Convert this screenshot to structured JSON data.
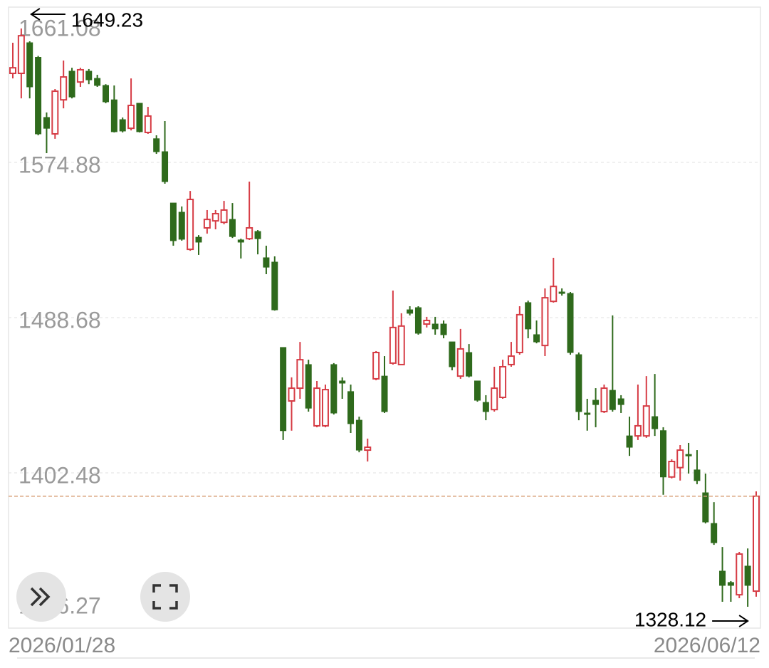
{
  "chart_data": {
    "type": "candlestick",
    "ylim": [
      1316.27,
      1661.08
    ],
    "yticks": [
      1661.08,
      1574.88,
      1488.68,
      1402.48,
      1316.27
    ],
    "up_color": "#d63c45",
    "down_color": "#2f6a1c",
    "categories": [
      "2026/01/28",
      null,
      null,
      null,
      null,
      null,
      null,
      null,
      null,
      null,
      null,
      null,
      null,
      null,
      null,
      null,
      null,
      null,
      null,
      null,
      null,
      null,
      null,
      null,
      null,
      null,
      null,
      null,
      null,
      null,
      null,
      null,
      null,
      null,
      null,
      null,
      null,
      null,
      null,
      null,
      null,
      null,
      null,
      null,
      null,
      null,
      null,
      null,
      null,
      null,
      null,
      null,
      null,
      null,
      null,
      null,
      null,
      null,
      null,
      null,
      null,
      null,
      null,
      null,
      null,
      null,
      null,
      null,
      null,
      null,
      null,
      null,
      null,
      null,
      null,
      null,
      null,
      null,
      null,
      null,
      null,
      null,
      null,
      null,
      null,
      null,
      null,
      null,
      "2026/06/12"
    ],
    "open": [
      1624.3,
      1624.3,
      1641.3,
      1633.2,
      1599.8,
      1590.7,
      1609.6,
      1625.5,
      1619.5,
      1625.5,
      1621.5,
      1617.6,
      1609.6,
      1598.6,
      1593.8,
      1607.7,
      1591.5,
      1588.0,
      1580.8,
      1552.3,
      1547.2,
      1526.6,
      1533.3,
      1538.5,
      1542.4,
      1541.6,
      1543.2,
      1531.8,
      1532.5,
      1536.5,
      1521.9,
      1519.5,
      1472.1,
      1442.4,
      1449.5,
      1462.6,
      1428.6,
      1428.6,
      1462.6,
      1453.5,
      1447.6,
      1431.7,
      1415.1,
      1454.7,
      1456.2,
      1463.4,
      1462.6,
      1493.0,
      1494.2,
      1485.1,
      1485.1,
      1485.1,
      1475.2,
      1456.2,
      1469.3,
      1453.5,
      1441.6,
      1437.6,
      1444.4,
      1462.6,
      1469.3,
      1497.0,
      1479.2,
      1473.2,
      1497.7,
      1502.9,
      1502.1,
      1468.1,
      1435.7,
      1442.8,
      1436.5,
      1448.3,
      1443.6,
      1423.0,
      1423.0,
      1423.0,
      1433.7,
      1425.9,
      1400.2,
      1405.4,
      1412.7,
      1404.1,
      1391.4,
      1374.4,
      1347.9,
      1341.6,
      1334.8,
      1350.7,
      1336.8
    ],
    "high": [
      1641.3,
      1649.23,
      1642.1,
      1634.0,
      1602.6,
      1615.6,
      1631.4,
      1627.4,
      1627.4,
      1626.7,
      1623.5,
      1618.3,
      1617.6,
      1599.8,
      1621.5,
      1607.7,
      1605.7,
      1589.9,
      1597.8,
      1552.3,
      1550.4,
      1559.0,
      1534.5,
      1548.4,
      1548.4,
      1553.5,
      1552.3,
      1532.5,
      1564.2,
      1537.3,
      1528.6,
      1522.7,
      1472.1,
      1455.5,
      1475.2,
      1465.3,
      1453.5,
      1451.5,
      1463.4,
      1455.5,
      1451.5,
      1433.7,
      1421.5,
      1470.1,
      1467.3,
      1503.7,
      1491.1,
      1495.0,
      1495.0,
      1489.1,
      1489.1,
      1487.1,
      1475.2,
      1482.4,
      1474.0,
      1453.5,
      1445.6,
      1461.4,
      1465.3,
      1475.2,
      1495.0,
      1498.1,
      1487.1,
      1504.9,
      1521.9,
      1504.9,
      1502.9,
      1469.3,
      1443.6,
      1449.5,
      1451.5,
      1489.9,
      1445.6,
      1433.7,
      1451.5,
      1456.2,
      1457.4,
      1427.8,
      1410.0,
      1417.9,
      1419.1,
      1415.1,
      1402.1,
      1386.2,
      1361.3,
      1342.4,
      1358.6,
      1360.5,
      1392.2
    ],
    "low": [
      1621.5,
      1610.4,
      1610.4,
      1589.9,
      1580.0,
      1588.0,
      1604.9,
      1610.4,
      1616.8,
      1618.3,
      1616.8,
      1607.7,
      1591.5,
      1591.5,
      1592.6,
      1591.5,
      1590.7,
      1579.6,
      1563.0,
      1528.6,
      1531.4,
      1525.8,
      1523.5,
      1535.3,
      1537.7,
      1540.5,
      1532.9,
      1521.5,
      1531.8,
      1523.8,
      1512.8,
      1492.6,
      1420.7,
      1425.9,
      1443.6,
      1436.5,
      1427.8,
      1427.8,
      1434.9,
      1443.6,
      1424.6,
      1413.9,
      1408.8,
      1453.9,
      1435.7,
      1462.6,
      1462.6,
      1489.9,
      1479.2,
      1483.2,
      1479.2,
      1477.2,
      1459.4,
      1454.7,
      1455.5,
      1442.0,
      1431.7,
      1436.5,
      1443.6,
      1461.4,
      1468.1,
      1477.2,
      1474.4,
      1467.3,
      1497.0,
      1500.9,
      1468.1,
      1431.7,
      1425.9,
      1427.8,
      1435.7,
      1436.5,
      1435.7,
      1411.9,
      1420.7,
      1421.9,
      1423.0,
      1390.3,
      1399.4,
      1398.2,
      1402.1,
      1396.2,
      1374.4,
      1362.5,
      1330.9,
      1330.9,
      1332.9,
      1328.12,
      1333.7
    ],
    "close": [
      1627.4,
      1645.2,
      1616.8,
      1590.7,
      1593.8,
      1614.4,
      1622.3,
      1611.2,
      1626.3,
      1620.7,
      1617.6,
      1608.5,
      1591.9,
      1592.3,
      1606.5,
      1591.9,
      1600.6,
      1580.8,
      1564.2,
      1531.4,
      1532.2,
      1554.3,
      1530.6,
      1543.2,
      1546.4,
      1548.4,
      1533.7,
      1530.6,
      1538.5,
      1532.5,
      1516.7,
      1493.0,
      1425.9,
      1449.5,
      1465.3,
      1438.4,
      1449.5,
      1448.7,
      1435.7,
      1452.3,
      1429.8,
      1415.1,
      1416.7,
      1469.3,
      1436.5,
      1483.2,
      1484.0,
      1491.1,
      1480.0,
      1487.1,
      1482.4,
      1479.2,
      1461.4,
      1471.3,
      1456.2,
      1442.8,
      1436.5,
      1449.5,
      1461.4,
      1467.3,
      1490.3,
      1482.4,
      1475.2,
      1499.7,
      1506.0,
      1502.1,
      1469.3,
      1436.5,
      1434.9,
      1440.4,
      1449.5,
      1437.6,
      1440.4,
      1416.7,
      1428.6,
      1439.6,
      1427.0,
      1400.2,
      1408.8,
      1415.1,
      1411.9,
      1398.2,
      1375.2,
      1363.7,
      1340.0,
      1340.0,
      1357.4,
      1340.0,
      1389.5
    ]
  }
}
